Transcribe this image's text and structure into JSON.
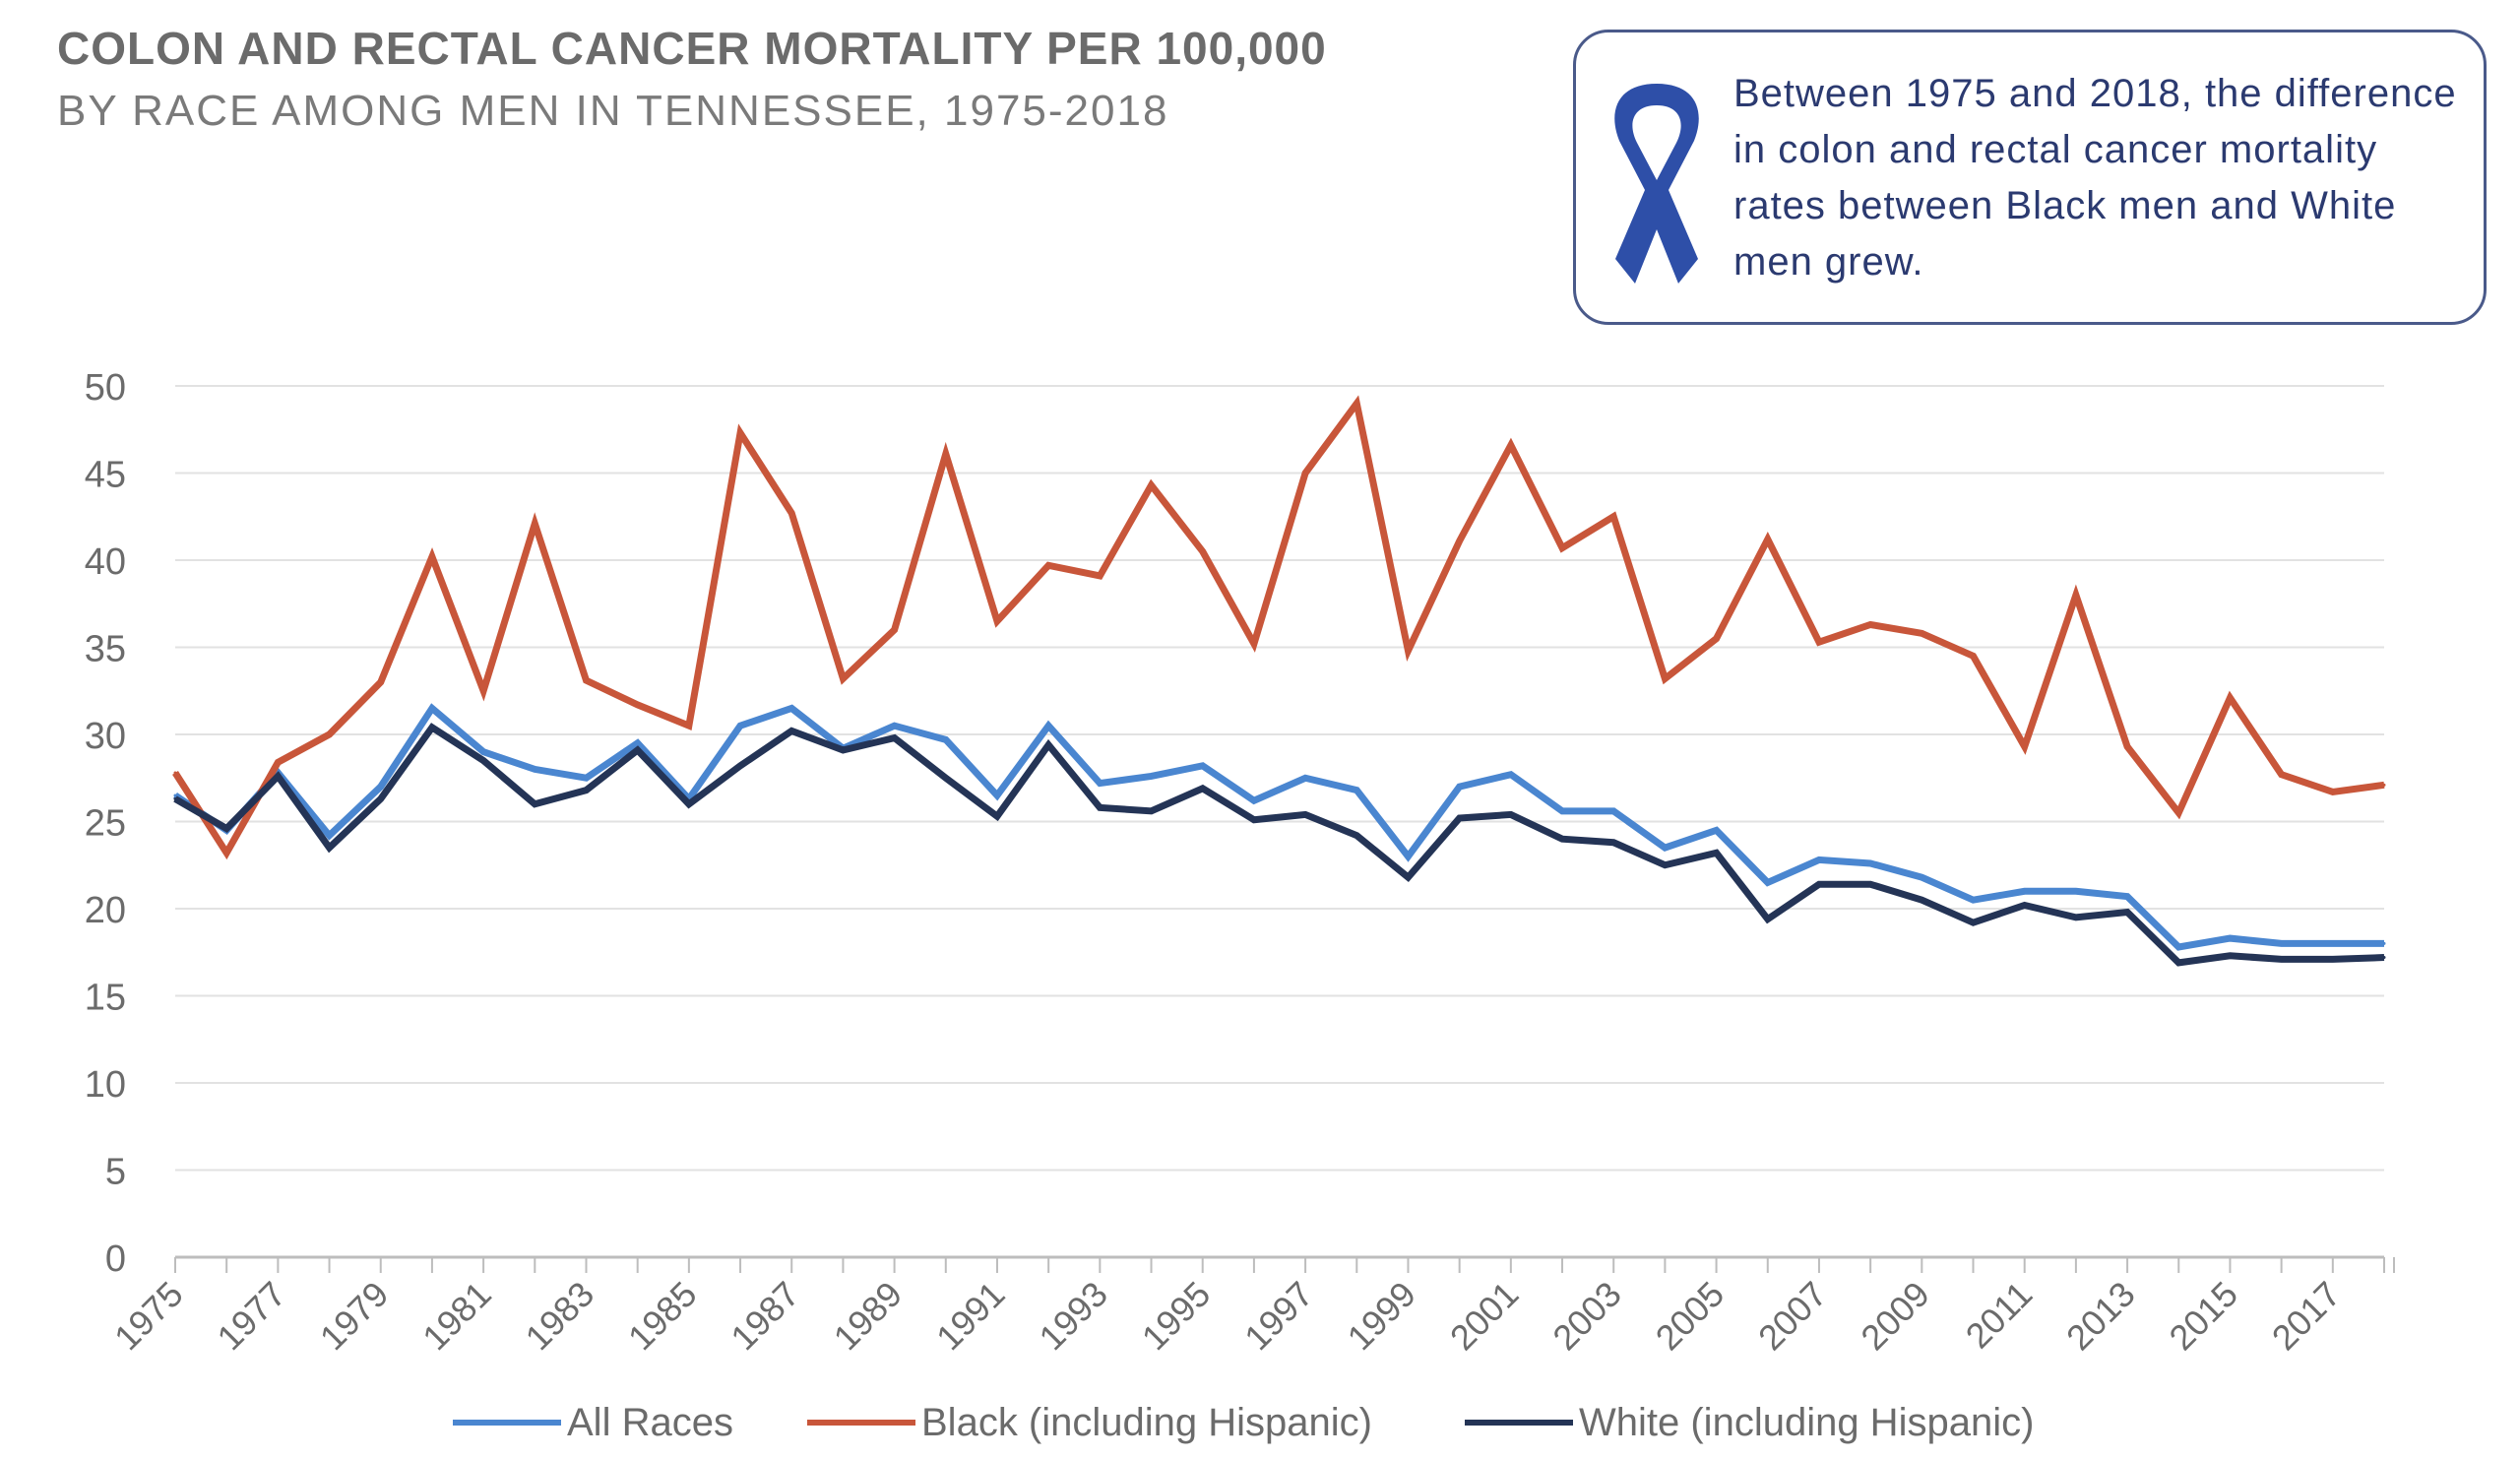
{
  "title": {
    "line1": "COLON AND RECTAL CANCER MORTALITY PER 100,000",
    "line2": "BY RACE AMONG MEN IN TENNESSEE, 1975-2018"
  },
  "callout": {
    "text": "Between 1975 and 2018, the difference in colon and rectal cancer mortality rates between Black men and White men grew.",
    "icon": "awareness-ribbon-icon",
    "border_color": "#4a5a8a",
    "ribbon_color": "#2e4fa8"
  },
  "chart_data": {
    "type": "line",
    "title": "COLON AND RECTAL CANCER MORTALITY PER 100,000 BY RACE AMONG MEN IN TENNESSEE, 1975-2018",
    "xlabel": "",
    "ylabel": "",
    "ylim": [
      0,
      50
    ],
    "yticks": [
      0,
      5,
      10,
      15,
      20,
      25,
      30,
      35,
      40,
      45,
      50
    ],
    "x": [
      1975,
      1976,
      1977,
      1978,
      1979,
      1980,
      1981,
      1982,
      1983,
      1984,
      1985,
      1986,
      1987,
      1988,
      1989,
      1990,
      1991,
      1992,
      1993,
      1994,
      1995,
      1996,
      1997,
      1998,
      1999,
      2000,
      2001,
      2002,
      2003,
      2004,
      2005,
      2006,
      2007,
      2008,
      2009,
      2010,
      2011,
      2012,
      2013,
      2014,
      2015,
      2016,
      2017,
      2018
    ],
    "xtick_labels": [
      "1975",
      "1977",
      "1979",
      "1981",
      "1983",
      "1985",
      "1987",
      "1989",
      "1991",
      "1993",
      "1995",
      "1997",
      "1999",
      "2001",
      "2003",
      "2005",
      "2007",
      "2009",
      "2011",
      "2013",
      "2015",
      "2017"
    ],
    "grid": true,
    "legend_position": "bottom",
    "series": [
      {
        "name": "All Races",
        "color": "#4a86d0",
        "values": [
          26.5,
          24.5,
          27.8,
          24.2,
          27.0,
          31.5,
          29.0,
          28.0,
          27.5,
          29.5,
          26.3,
          30.5,
          31.5,
          29.2,
          30.5,
          29.7,
          26.5,
          30.5,
          27.2,
          27.6,
          28.2,
          26.2,
          27.5,
          26.8,
          23.0,
          27.0,
          27.7,
          25.6,
          25.6,
          23.5,
          24.5,
          21.5,
          22.8,
          22.6,
          21.8,
          20.5,
          21.0,
          21.0,
          20.7,
          17.8,
          18.3,
          18.0,
          18.0,
          18.0
        ]
      },
      {
        "name": "Black (including Hispanic)",
        "color": "#c8563a",
        "values": [
          27.8,
          23.2,
          28.4,
          30.0,
          33.0,
          40.2,
          32.5,
          42.1,
          33.1,
          31.7,
          30.5,
          47.3,
          42.7,
          33.2,
          36.0,
          46.1,
          36.5,
          39.7,
          39.1,
          44.3,
          40.5,
          35.2,
          45.0,
          49.0,
          34.8,
          41.1,
          46.6,
          40.7,
          42.5,
          33.2,
          35.5,
          41.2,
          35.3,
          36.3,
          35.8,
          34.5,
          29.3,
          38.0,
          29.3,
          25.5,
          32.1,
          27.7,
          26.7,
          27.1
        ]
      },
      {
        "name": "White (including Hispanic)",
        "color": "#243456",
        "values": [
          26.3,
          24.6,
          27.6,
          23.5,
          26.3,
          30.4,
          28.5,
          26.0,
          26.8,
          29.1,
          26.0,
          28.2,
          30.2,
          29.1,
          29.8,
          27.5,
          25.3,
          29.4,
          25.8,
          25.6,
          26.9,
          25.1,
          25.4,
          24.2,
          21.8,
          25.2,
          25.4,
          24.0,
          23.8,
          22.5,
          23.2,
          19.4,
          21.4,
          21.4,
          20.5,
          19.2,
          20.2,
          19.5,
          19.8,
          16.9,
          17.3,
          17.1,
          17.1,
          17.2
        ]
      }
    ]
  }
}
